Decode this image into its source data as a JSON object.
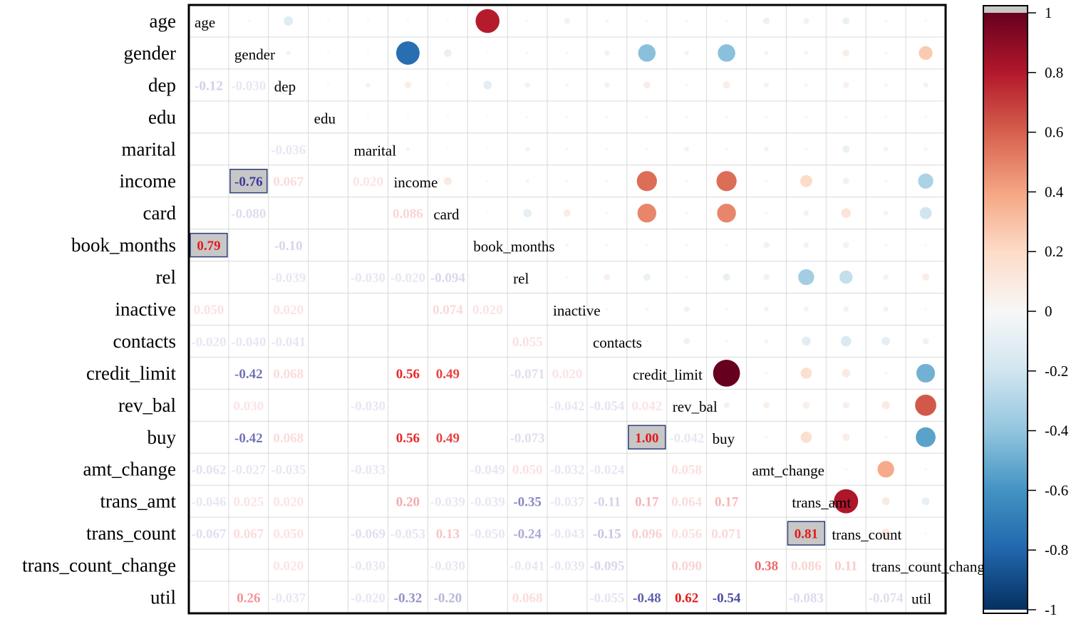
{
  "chart_data": {
    "type": "heatmap",
    "subtype": "correlation-matrix (mixed: numbers lower triangle, circles upper triangle)",
    "variables": [
      "age",
      "gender",
      "dep",
      "edu",
      "marital",
      "income",
      "card",
      "book_months",
      "rel",
      "inactive",
      "contacts",
      "credit_limit",
      "rev_bal",
      "buy",
      "amt_change",
      "trans_amt",
      "trans_count",
      "trans_count_change",
      "util"
    ],
    "colorbar": {
      "range": [
        -1,
        1
      ],
      "ticks": [
        "1",
        "0.8",
        "0.6",
        "0.4",
        "0.2",
        "0",
        "-0.2",
        "-0.4",
        "-0.6",
        "-0.8",
        "-1"
      ],
      "low_color": "#053061",
      "mid_color": "#f7f7f7",
      "high_color": "#67001f"
    },
    "grid": true,
    "matrix": [
      [
        1.0,
        0.0,
        -0.12,
        0.0,
        0.0,
        0.0,
        0.0,
        0.79,
        0.0,
        0.05,
        -0.02,
        0.0,
        0.01,
        0.0,
        -0.062,
        -0.046,
        -0.067,
        -0.012,
        0.0
      ],
      [
        0.0,
        1.0,
        -0.03,
        0.0,
        0.0,
        -0.76,
        -0.08,
        0.0,
        0.01,
        0.01,
        -0.04,
        -0.42,
        0.03,
        -0.42,
        -0.027,
        0.025,
        0.067,
        0.01,
        0.26
      ],
      [
        -0.12,
        -0.03,
        1.0,
        0.0,
        -0.036,
        0.067,
        0.0,
        -0.1,
        -0.039,
        0.02,
        -0.041,
        0.068,
        0.0,
        0.068,
        -0.035,
        0.02,
        0.05,
        0.02,
        -0.037
      ],
      [
        0.0,
        0.0,
        0.0,
        1.0,
        0.0,
        0.0,
        0.0,
        0.0,
        0.0,
        0.0,
        0.0,
        0.0,
        0.0,
        0.0,
        0.0,
        0.0,
        0.0,
        0.0,
        0.0
      ],
      [
        0.0,
        0.0,
        -0.036,
        0.0,
        1.0,
        0.02,
        0.0,
        0.0,
        -0.03,
        -0.01,
        0.0,
        0.0,
        -0.03,
        0.0,
        -0.033,
        0.0,
        -0.069,
        -0.03,
        -0.02
      ],
      [
        0.0,
        -0.76,
        0.067,
        0.0,
        0.02,
        1.0,
        0.086,
        0.0,
        -0.02,
        -0.01,
        0.0,
        0.56,
        0.0,
        0.56,
        0.0,
        0.2,
        -0.053,
        0.01,
        -0.32
      ],
      [
        0.0,
        -0.08,
        0.0,
        0.0,
        0.0,
        0.086,
        1.0,
        0.0,
        -0.094,
        0.074,
        0.0,
        0.49,
        0.0,
        0.49,
        0.0,
        -0.039,
        0.13,
        -0.03,
        -0.2
      ],
      [
        0.79,
        0.0,
        -0.1,
        0.0,
        0.0,
        0.0,
        0.0,
        1.0,
        0.01,
        0.02,
        -0.01,
        0.0,
        0.01,
        0.0,
        -0.049,
        -0.039,
        -0.05,
        -0.01,
        0.0
      ],
      [
        0.0,
        0.01,
        -0.039,
        0.0,
        -0.03,
        -0.02,
        -0.094,
        0.01,
        1.0,
        0.0,
        0.055,
        -0.071,
        0.01,
        -0.073,
        0.05,
        -0.35,
        -0.24,
        -0.041,
        0.068
      ],
      [
        0.05,
        0.01,
        0.02,
        0.0,
        -0.01,
        -0.01,
        0.074,
        0.02,
        0.0,
        1.0,
        0.0,
        0.02,
        -0.042,
        0.01,
        -0.032,
        -0.037,
        -0.043,
        -0.039,
        0.0
      ],
      [
        -0.02,
        -0.04,
        -0.041,
        0.0,
        0.0,
        0.0,
        0.0,
        -0.01,
        0.055,
        0.0,
        1.0,
        0.01,
        -0.054,
        0.01,
        -0.024,
        -0.11,
        -0.15,
        -0.095,
        -0.055
      ],
      [
        0.0,
        -0.42,
        0.068,
        0.0,
        0.0,
        0.56,
        0.49,
        0.0,
        -0.071,
        0.02,
        0.01,
        1.0,
        0.042,
        1.0,
        0.01,
        0.17,
        0.096,
        0.01,
        -0.48
      ],
      [
        0.01,
        0.03,
        0.0,
        0.0,
        -0.03,
        0.0,
        0.0,
        0.01,
        0.01,
        -0.042,
        -0.054,
        0.042,
        1.0,
        -0.042,
        0.058,
        0.064,
        0.056,
        0.09,
        0.62
      ],
      [
        0.0,
        -0.42,
        0.068,
        0.0,
        0.0,
        0.56,
        0.49,
        0.0,
        -0.073,
        0.01,
        0.01,
        1.0,
        -0.042,
        1.0,
        0.01,
        0.17,
        0.071,
        0.01,
        -0.54
      ],
      [
        -0.062,
        -0.027,
        -0.035,
        0.0,
        -0.033,
        0.0,
        0.0,
        -0.049,
        0.05,
        -0.032,
        -0.024,
        0.01,
        0.058,
        0.01,
        1.0,
        0.01,
        0.0,
        0.38,
        0.0
      ],
      [
        -0.046,
        0.025,
        0.02,
        0.0,
        0.0,
        0.2,
        -0.039,
        -0.039,
        -0.35,
        -0.037,
        -0.11,
        0.17,
        0.064,
        0.17,
        0.01,
        1.0,
        0.81,
        0.086,
        -0.083
      ],
      [
        -0.067,
        0.067,
        0.05,
        0.0,
        -0.069,
        -0.053,
        0.13,
        -0.05,
        -0.24,
        -0.043,
        -0.15,
        0.096,
        0.056,
        0.071,
        0.0,
        0.81,
        1.0,
        0.11,
        0.0
      ],
      [
        -0.012,
        0.01,
        0.02,
        0.0,
        -0.03,
        0.01,
        -0.03,
        -0.01,
        -0.041,
        -0.039,
        -0.095,
        0.01,
        0.09,
        0.01,
        0.38,
        0.086,
        0.11,
        1.0,
        -0.074
      ],
      [
        0.0,
        0.26,
        -0.037,
        0.0,
        -0.02,
        -0.32,
        -0.2,
        0.0,
        0.068,
        0.0,
        -0.055,
        -0.48,
        0.62,
        -0.54,
        0.0,
        -0.083,
        0.0,
        -0.074,
        1.0
      ]
    ],
    "highlighted_cells": [
      [
        5,
        1
      ],
      [
        7,
        0
      ],
      [
        13,
        11
      ],
      [
        16,
        15
      ]
    ]
  }
}
